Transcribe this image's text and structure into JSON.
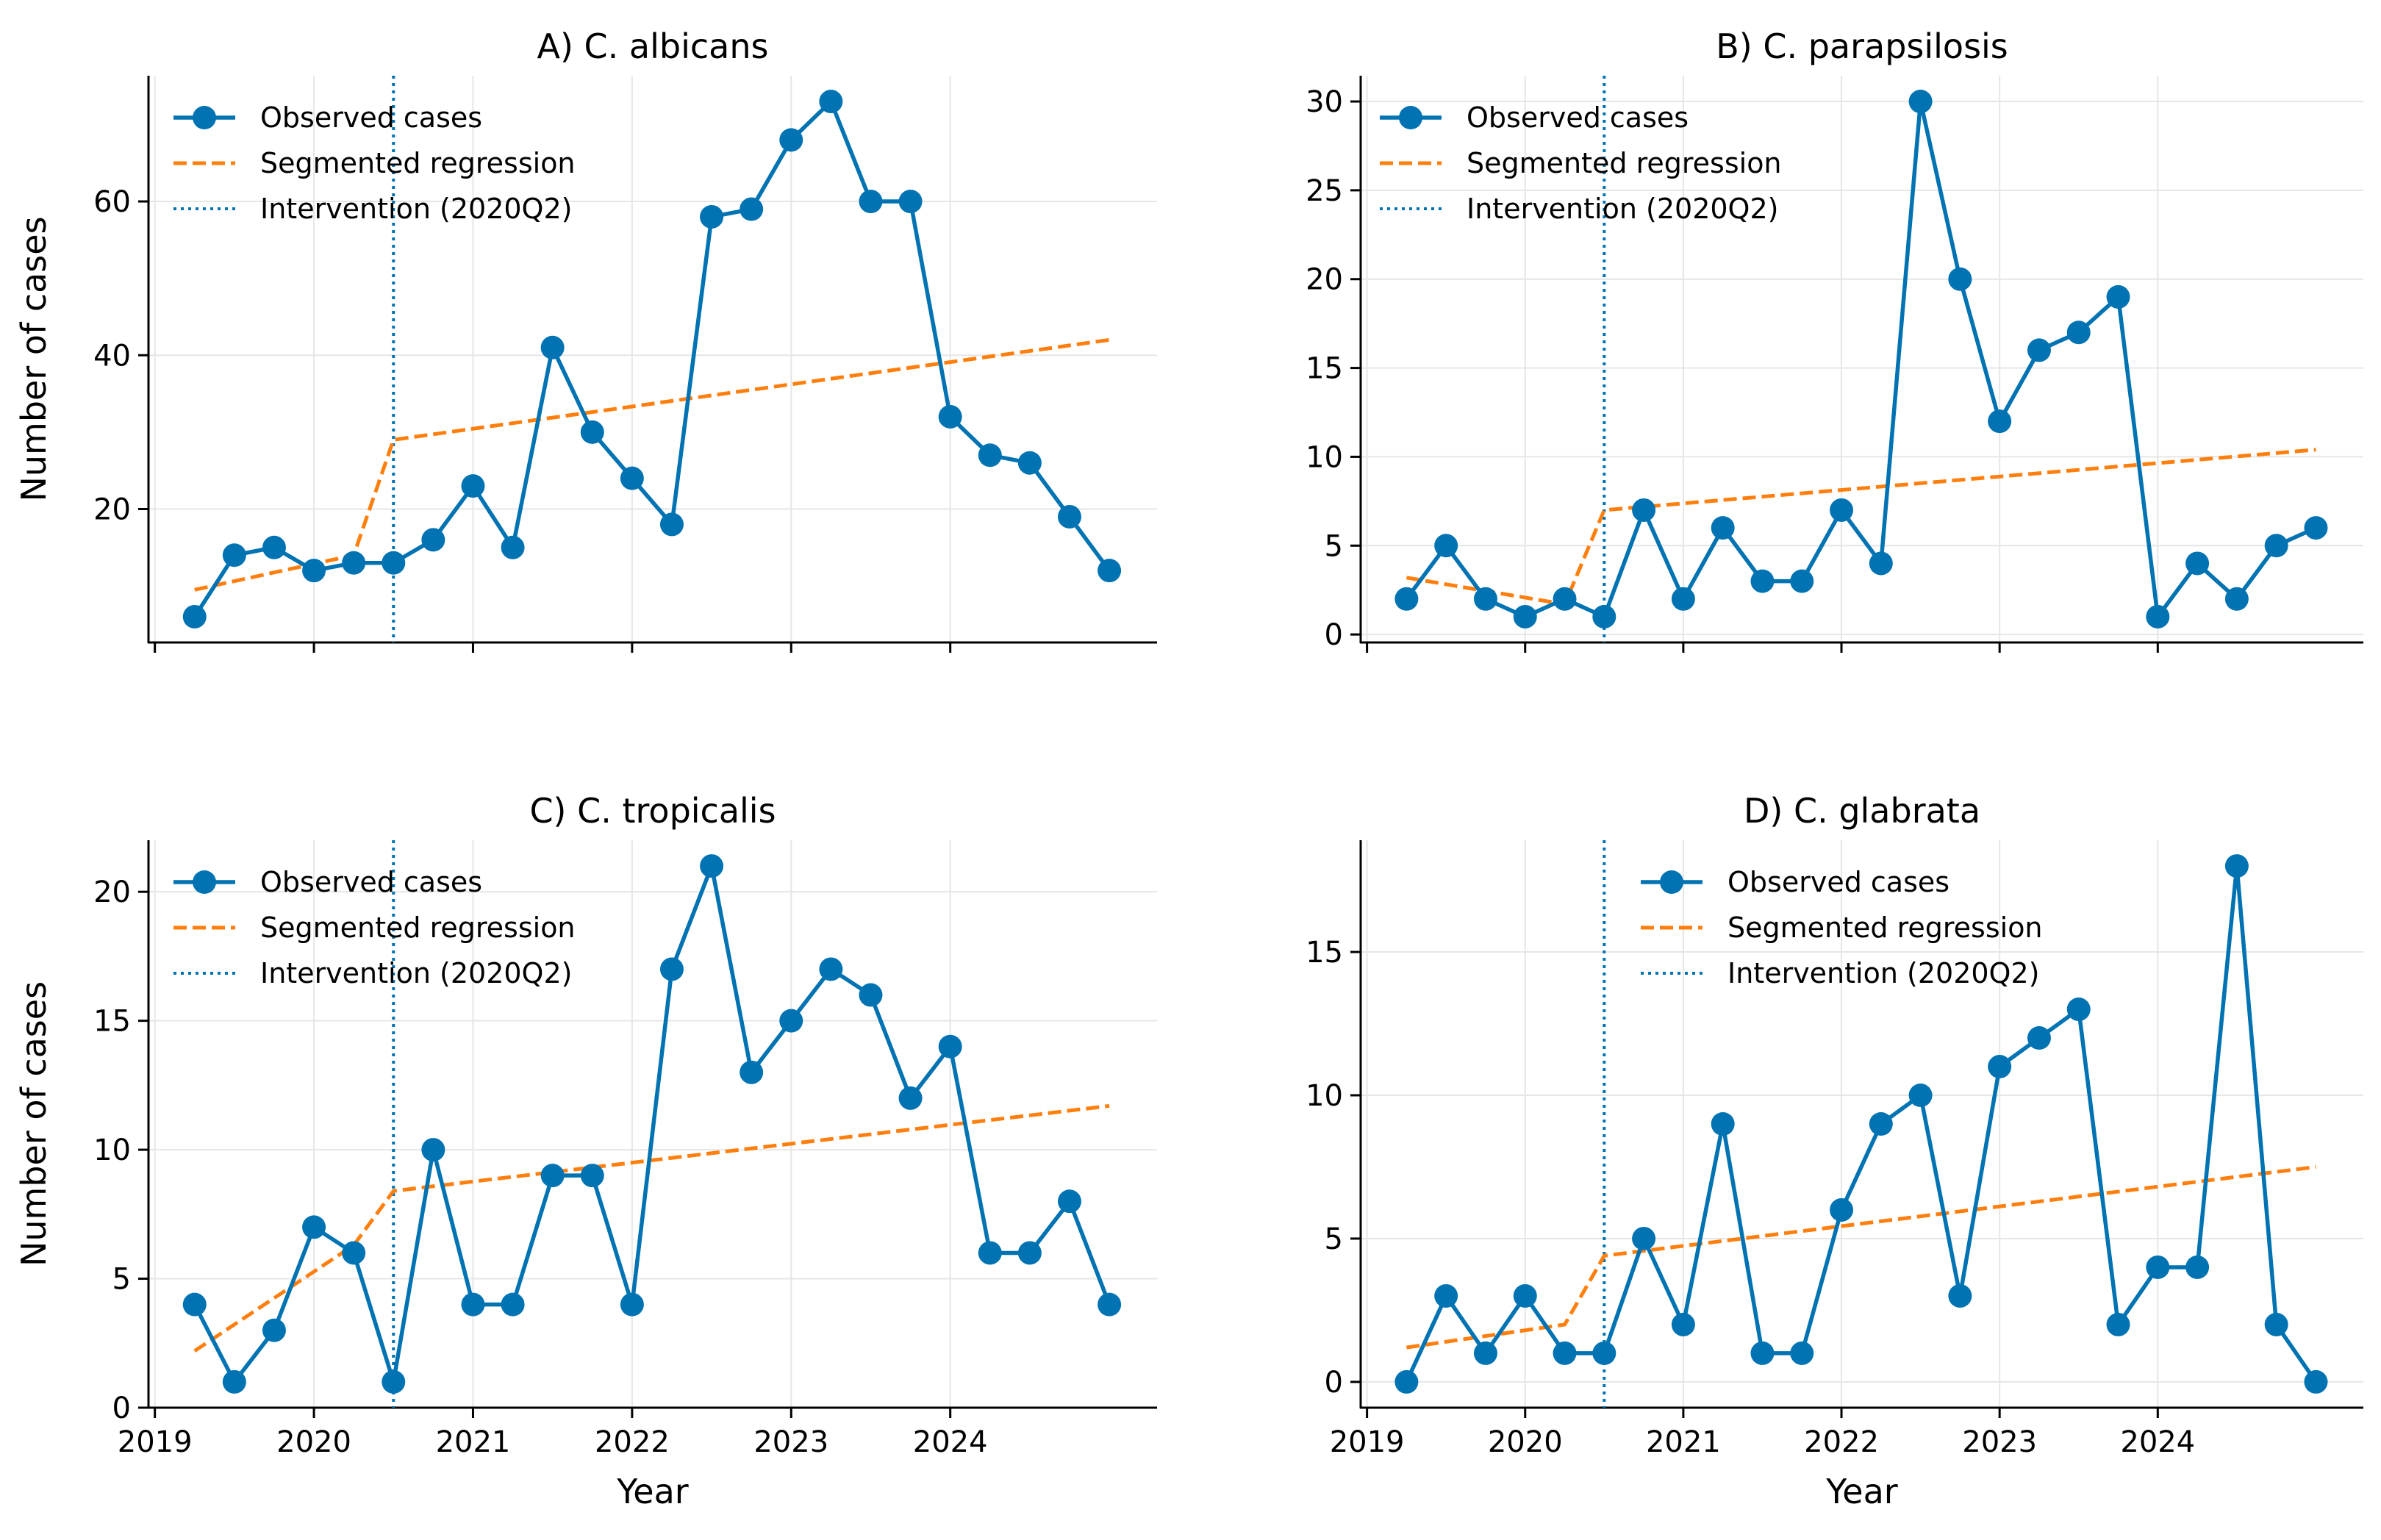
{
  "chart_data": [
    {
      "type": "line",
      "title": "A) C. albicans",
      "xlabel": "",
      "ylabel": "Number of cases",
      "x": [
        2019.25,
        2019.5,
        2019.75,
        2020.0,
        2020.25,
        2020.5,
        2020.75,
        2021.0,
        2021.25,
        2021.5,
        2021.75,
        2022.0,
        2022.25,
        2022.5,
        2022.75,
        2023.0,
        2023.25,
        2023.5,
        2023.75,
        2024.0,
        2024.25,
        2024.5,
        2024.75,
        2025.0
      ],
      "series": [
        {
          "name": "Observed cases",
          "values": [
            6,
            14,
            15,
            12,
            13,
            13,
            16,
            23,
            15,
            41,
            30,
            24,
            18,
            58,
            59,
            68,
            73,
            60,
            60,
            32,
            27,
            26,
            19,
            12
          ]
        }
      ],
      "regression": {
        "name": "Segmented regression",
        "pre": [
          [
            2019.25,
            9.5
          ],
          [
            2020.25,
            14
          ]
        ],
        "post": [
          [
            2020.5,
            29
          ],
          [
            2025.0,
            42
          ]
        ]
      },
      "intervention": {
        "label": "Intervention (2020Q2)",
        "x": 2020.5
      },
      "xlim": [
        2018.96,
        2025.3
      ],
      "ylim": [
        2.65,
        76.35
      ],
      "xticks": [
        2019,
        2020,
        2021,
        2022,
        2023,
        2024
      ],
      "yticks": [
        20,
        40,
        60
      ],
      "show_xticklabels": false,
      "legend": "top-left",
      "grid": true
    },
    {
      "type": "line",
      "title": "B) C. parapsilosis",
      "xlabel": "",
      "ylabel": "",
      "x": [
        2019.25,
        2019.5,
        2019.75,
        2020.0,
        2020.25,
        2020.5,
        2020.75,
        2021.0,
        2021.25,
        2021.5,
        2021.75,
        2022.0,
        2022.25,
        2022.5,
        2022.75,
        2023.0,
        2023.25,
        2023.5,
        2023.75,
        2024.0,
        2024.25,
        2024.5,
        2024.75,
        2025.0
      ],
      "series": [
        {
          "name": "Observed cases",
          "values": [
            2,
            5,
            2,
            1,
            2,
            1,
            7,
            2,
            6,
            3,
            3,
            7,
            4,
            30,
            20,
            12,
            16,
            17,
            19,
            1,
            4,
            2,
            5,
            6
          ]
        }
      ],
      "regression": {
        "name": "Segmented regression",
        "pre": [
          [
            2019.25,
            3.2
          ],
          [
            2020.25,
            1.7
          ]
        ],
        "post": [
          [
            2020.5,
            7.0
          ],
          [
            2025.0,
            10.4
          ]
        ]
      },
      "intervention": {
        "label": "Intervention (2020Q2)",
        "x": 2020.5
      },
      "xlim": [
        2018.96,
        2025.3
      ],
      "ylim": [
        -0.45,
        31.45
      ],
      "xticks": [
        2019,
        2020,
        2021,
        2022,
        2023,
        2024
      ],
      "yticks": [
        0,
        5,
        10,
        15,
        20,
        25,
        30
      ],
      "show_xticklabels": false,
      "legend": "top-left",
      "grid": true
    },
    {
      "type": "line",
      "title": "C) C. tropicalis",
      "xlabel": "Year",
      "ylabel": "Number of cases",
      "x": [
        2019.25,
        2019.5,
        2019.75,
        2020.0,
        2020.25,
        2020.5,
        2020.75,
        2021.0,
        2021.25,
        2021.5,
        2021.75,
        2022.0,
        2022.25,
        2022.5,
        2022.75,
        2023.0,
        2023.25,
        2023.5,
        2023.75,
        2024.0,
        2024.25,
        2024.5,
        2024.75,
        2025.0
      ],
      "series": [
        {
          "name": "Observed cases",
          "values": [
            4,
            1,
            3,
            7,
            6,
            1,
            10,
            4,
            4,
            9,
            9,
            4,
            17,
            21,
            13,
            15,
            17,
            16,
            12,
            14,
            6,
            6,
            8,
            4
          ]
        }
      ],
      "regression": {
        "name": "Segmented regression",
        "pre": [
          [
            2019.25,
            2.2
          ],
          [
            2020.25,
            6.3
          ]
        ],
        "post": [
          [
            2020.5,
            8.4
          ],
          [
            2025.0,
            11.7
          ]
        ]
      },
      "intervention": {
        "label": "Intervention (2020Q2)",
        "x": 2020.5
      },
      "xlim": [
        2018.96,
        2025.3
      ],
      "ylim": [
        0,
        22
      ],
      "xticks": [
        2019,
        2020,
        2021,
        2022,
        2023,
        2024
      ],
      "yticks": [
        0,
        5,
        10,
        15,
        20
      ],
      "show_xticklabels": true,
      "legend": "top-left",
      "grid": true
    },
    {
      "type": "line",
      "title": "D) C. glabrata",
      "xlabel": "Year",
      "ylabel": "",
      "x": [
        2019.25,
        2019.5,
        2019.75,
        2020.0,
        2020.25,
        2020.5,
        2020.75,
        2021.0,
        2021.25,
        2021.5,
        2021.75,
        2022.0,
        2022.25,
        2022.5,
        2022.75,
        2023.0,
        2023.25,
        2023.5,
        2023.75,
        2024.0,
        2024.25,
        2024.5,
        2024.75,
        2025.0
      ],
      "series": [
        {
          "name": "Observed cases",
          "values": [
            0,
            3,
            1,
            3,
            1,
            1,
            5,
            2,
            9,
            1,
            1,
            6,
            9,
            10,
            3,
            11,
            12,
            13,
            2,
            4,
            4,
            18,
            2,
            0
          ]
        }
      ],
      "regression": {
        "name": "Segmented regression",
        "pre": [
          [
            2019.25,
            1.2
          ],
          [
            2020.25,
            2.0
          ]
        ],
        "post": [
          [
            2020.5,
            4.4
          ],
          [
            2025.0,
            7.5
          ]
        ]
      },
      "intervention": {
        "label": "Intervention (2020Q2)",
        "x": 2020.5
      },
      "xlim": [
        2018.96,
        2025.3
      ],
      "ylim": [
        -0.9,
        18.9
      ],
      "xticks": [
        2019,
        2020,
        2021,
        2022,
        2023,
        2024
      ],
      "yticks": [
        0,
        5,
        10,
        15
      ],
      "show_xticklabels": true,
      "legend": "top-center",
      "grid": true
    }
  ],
  "colors": {
    "observed": "#0173b2",
    "regression": "#ff7f0e",
    "intervention": "#0173b2",
    "grid": "#e6e6e6"
  }
}
